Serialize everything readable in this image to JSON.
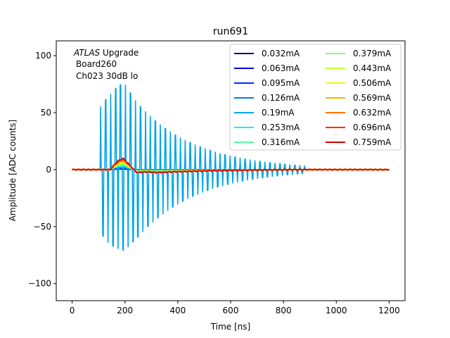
{
  "chart_data": {
    "type": "line",
    "title": "run691",
    "xlabel": "Time [ns]",
    "ylabel": "Amplitude [ADC counts]",
    "xlim": [
      -60,
      1260
    ],
    "ylim": [
      -115,
      113
    ],
    "xticks": [
      0,
      200,
      400,
      600,
      800,
      1000,
      1200
    ],
    "yticks": [
      -100,
      -50,
      0,
      50,
      100
    ],
    "grid": false,
    "legend_position": "top-right",
    "legend_columns": 2,
    "annotation": {
      "line1_italic": "ATLAS",
      "line1_rest": " Upgrade",
      "line2": "Board260",
      "line3": "Ch023 30dB lo"
    },
    "series": [
      {
        "name": "0.032mA",
        "color": "#00007f",
        "peak": 0.4
      },
      {
        "name": "0.063mA",
        "color": "#0000e6",
        "peak": 0.8
      },
      {
        "name": "0.095mA",
        "color": "#0028ff",
        "peak": 1.2
      },
      {
        "name": "0.126mA",
        "color": "#0078ff",
        "peak": 1.6
      },
      {
        "name": "0.19mA",
        "color": "#00a4e8",
        "peak": 2.4,
        "oscillation": {
          "start": 108,
          "period": 18.85,
          "decay": 0.0045,
          "amplitude": 110,
          "end": 880
        }
      },
      {
        "name": "0.253mA",
        "color": "#1cf0dc",
        "peak": 3.2
      },
      {
        "name": "0.316mA",
        "color": "#53ffa3",
        "peak": 4.0
      },
      {
        "name": "0.379mA",
        "color": "#8aff6b",
        "peak": 4.8
      },
      {
        "name": "0.443mA",
        "color": "#c1ff36",
        "peak": 5.6
      },
      {
        "name": "0.506mA",
        "color": "#f8f500",
        "peak": 6.4
      },
      {
        "name": "0.569mA",
        "color": "#ffb400",
        "peak": 7.2
      },
      {
        "name": "0.632mA",
        "color": "#ff7300",
        "peak": 8.0
      },
      {
        "name": "0.696mA",
        "color": "#ff2b00",
        "peak": 8.8
      },
      {
        "name": "0.759mA",
        "color": "#cc0000",
        "peak": 9.6
      }
    ]
  }
}
